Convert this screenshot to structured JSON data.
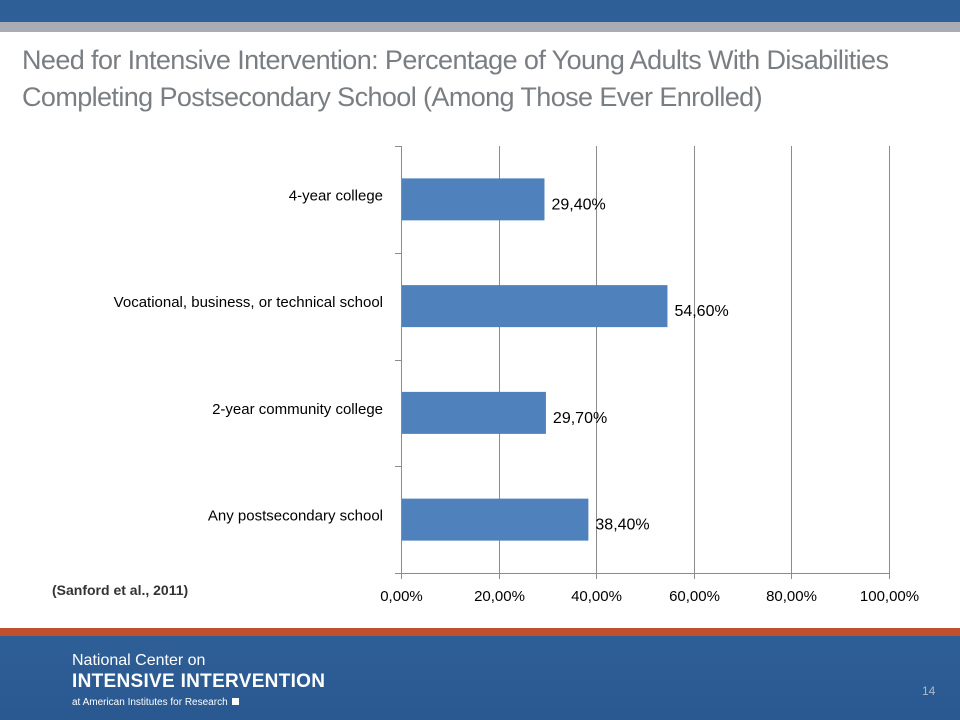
{
  "title": {
    "line1": "Need for Intensive Intervention: Percentage of Young Adults With Disabilities",
    "line2": "Completing Postsecondary School (Among Those Ever Enrolled)"
  },
  "citation": "(Sanford et al., 2011)",
  "footer": {
    "org_line1": "National Center on",
    "org_line2": "INTENSIVE INTERVENTION",
    "org_line3": "at American Institutes for Research",
    "page_number": "14"
  },
  "colors": {
    "bar": "#4f81bd",
    "header_blue": "#2f5f97",
    "accent_red": "#c0502e"
  },
  "chart_data": {
    "type": "bar",
    "orientation": "horizontal",
    "categories": [
      "4-year college",
      "Vocational, business, or technical school",
      "2-year community college",
      "Any postsecondary school"
    ],
    "values": [
      29.4,
      54.6,
      29.7,
      38.4
    ],
    "data_labels": [
      "29,40%",
      "54,60%",
      "29,70%",
      "38,40%"
    ],
    "xlim": [
      0,
      100
    ],
    "x_ticks": [
      "0,00%",
      "20,00%",
      "40,00%",
      "60,00%",
      "80,00%",
      "100,00%"
    ],
    "xlabel": "",
    "ylabel": "",
    "grid": "vertical",
    "legend": "none"
  }
}
